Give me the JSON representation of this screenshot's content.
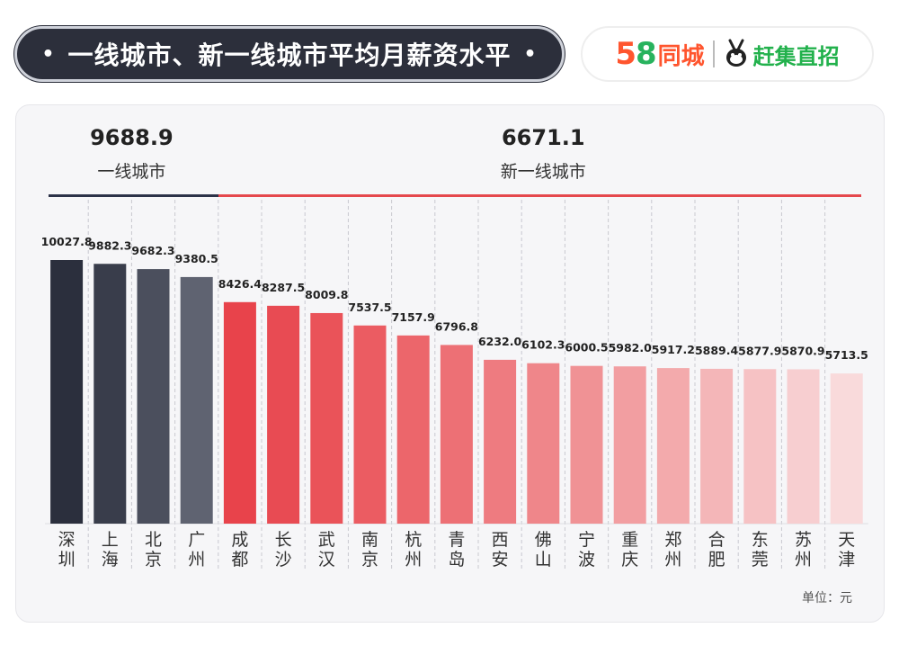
{
  "header": {
    "title": "一线城市、新一线城市平均月薪资水平",
    "bullet": "•"
  },
  "brand": {
    "logo_58_five": "5",
    "logo_58_eight": "8",
    "logo_58_text": "同城",
    "logo_ganji_text": "赶集直招",
    "ganji_icon": "rabbit-mascot-icon"
  },
  "chart_data": {
    "type": "bar",
    "categories": [
      "深圳",
      "上海",
      "北京",
      "广州",
      "成都",
      "长沙",
      "武汉",
      "南京",
      "杭州",
      "青岛",
      "西安",
      "佛山",
      "宁波",
      "重庆",
      "郑州",
      "合肥",
      "东莞",
      "苏州",
      "天津"
    ],
    "values": [
      10027.8,
      9882.3,
      9682.3,
      9380.5,
      8426.4,
      8287.5,
      8009.8,
      7537.5,
      7157.9,
      6796.8,
      6232.0,
      6102.3,
      6000.5,
      5982.0,
      5917.2,
      5889.4,
      5877.9,
      5870.9,
      5713.5
    ],
    "value_labels": [
      "10027.8",
      "9882.3",
      "9682.3",
      "9380.5",
      "8426.4",
      "8287.5",
      "8009.8",
      "7537.5",
      "7157.9",
      "6796.8",
      "6232.0",
      "6102.3",
      "6000.5",
      "5982.0",
      "5917.2",
      "5889.4",
      "5877.9",
      "5870.9",
      "5713.5"
    ],
    "colors": [
      "#2b2f3d",
      "#393d4b",
      "#4b4f5d",
      "#5f6371",
      "#e8434b",
      "#e84b53",
      "#ea5359",
      "#eb5c62",
      "#ec666b",
      "#ed7075",
      "#ee7b80",
      "#ef868a",
      "#f09295",
      "#f29ea1",
      "#f3aaac",
      "#f4b6b8",
      "#f6c2c4",
      "#f7ced0",
      "#f9dadb"
    ],
    "groups": [
      {
        "name": "一线城市",
        "average": "9688.9",
        "color": "#2c3248",
        "start": 0,
        "end": 3
      },
      {
        "name": "新一线城市",
        "average": "6671.1",
        "color": "#e5484d",
        "start": 4,
        "end": 18
      }
    ],
    "unit_label": "单位：元",
    "ylim": [
      0,
      10027.8
    ],
    "grid": "vertical dashed separators",
    "legend": "none"
  }
}
